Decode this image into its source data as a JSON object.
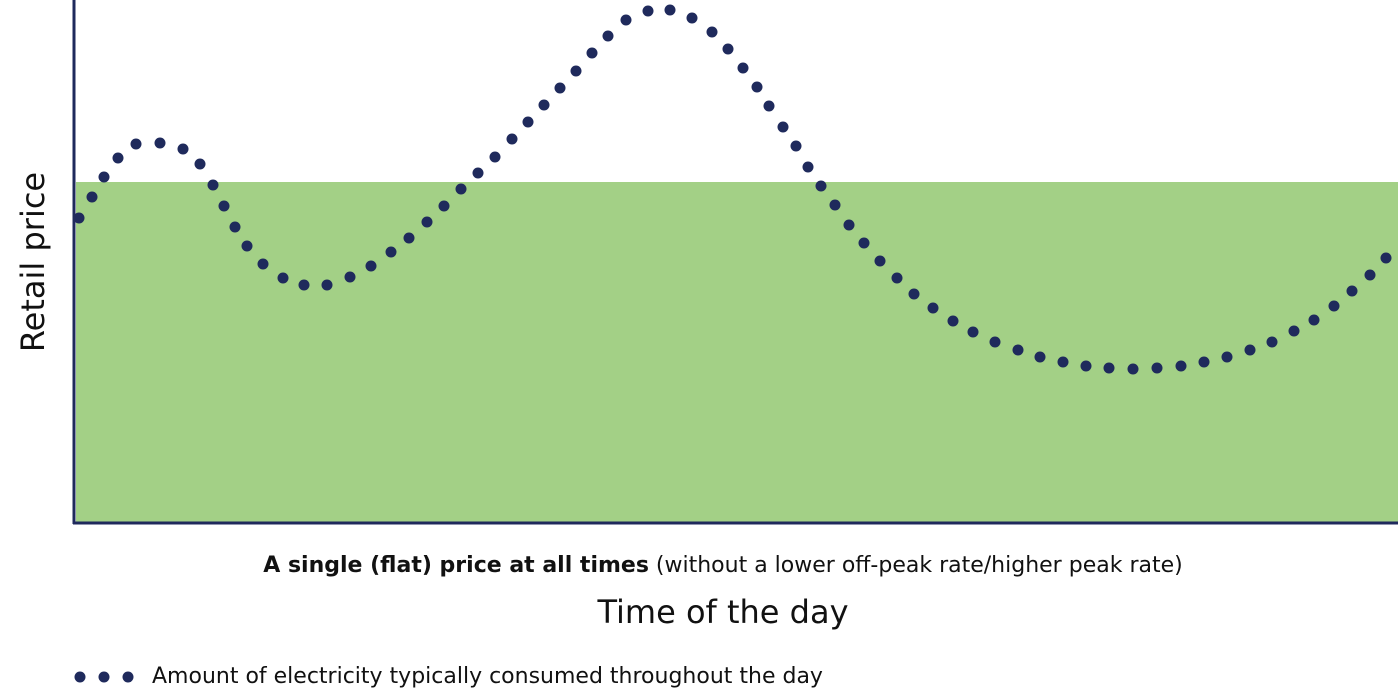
{
  "chart_data": {
    "type": "scatter",
    "ylabel": "Retail price",
    "annotation_bold": "A single (flat) price at all times",
    "annotation": "(without a lower off-peak rate/higher peak rate)",
    "xlabel": "Time of the day",
    "xlim": [
      0,
      1324
    ],
    "ylim": [
      0,
      523
    ],
    "price_level": 341,
    "price_color": "#a3d086",
    "series": [
      {
        "name": "Amount of electricity typically consumed throughout the day",
        "color": "#1f2a5c",
        "x": [
          5,
          18,
          30,
          44,
          62,
          86,
          109,
          126,
          139,
          150,
          161,
          173,
          189,
          209,
          230,
          253,
          276,
          297,
          317,
          335,
          353,
          370,
          387,
          404,
          421,
          438,
          454,
          470,
          486,
          502,
          518,
          534,
          552,
          574,
          596,
          618,
          638,
          654,
          669,
          683,
          695,
          709,
          722,
          734,
          747,
          761,
          775,
          790,
          806,
          823,
          840,
          859,
          879,
          899,
          921,
          944,
          966,
          989,
          1012,
          1035,
          1059,
          1083,
          1107,
          1130,
          1153,
          1176,
          1198,
          1220,
          1240,
          1260,
          1278,
          1296,
          1312
        ],
        "values": [
          305,
          326,
          346,
          365,
          379,
          380,
          374,
          359,
          338,
          317,
          296,
          277,
          259,
          245,
          238,
          238,
          246,
          257,
          271,
          285,
          301,
          317,
          334,
          350,
          366,
          384,
          401,
          418,
          435,
          452,
          470,
          487,
          503,
          512,
          513,
          505,
          491,
          474,
          455,
          436,
          417,
          396,
          377,
          356,
          337,
          318,
          298,
          280,
          262,
          245,
          229,
          215,
          202,
          191,
          181,
          173,
          166,
          161,
          157,
          155,
          154,
          155,
          157,
          161,
          166,
          173,
          181,
          192,
          203,
          217,
          232,
          248,
          265
        ]
      }
    ]
  }
}
